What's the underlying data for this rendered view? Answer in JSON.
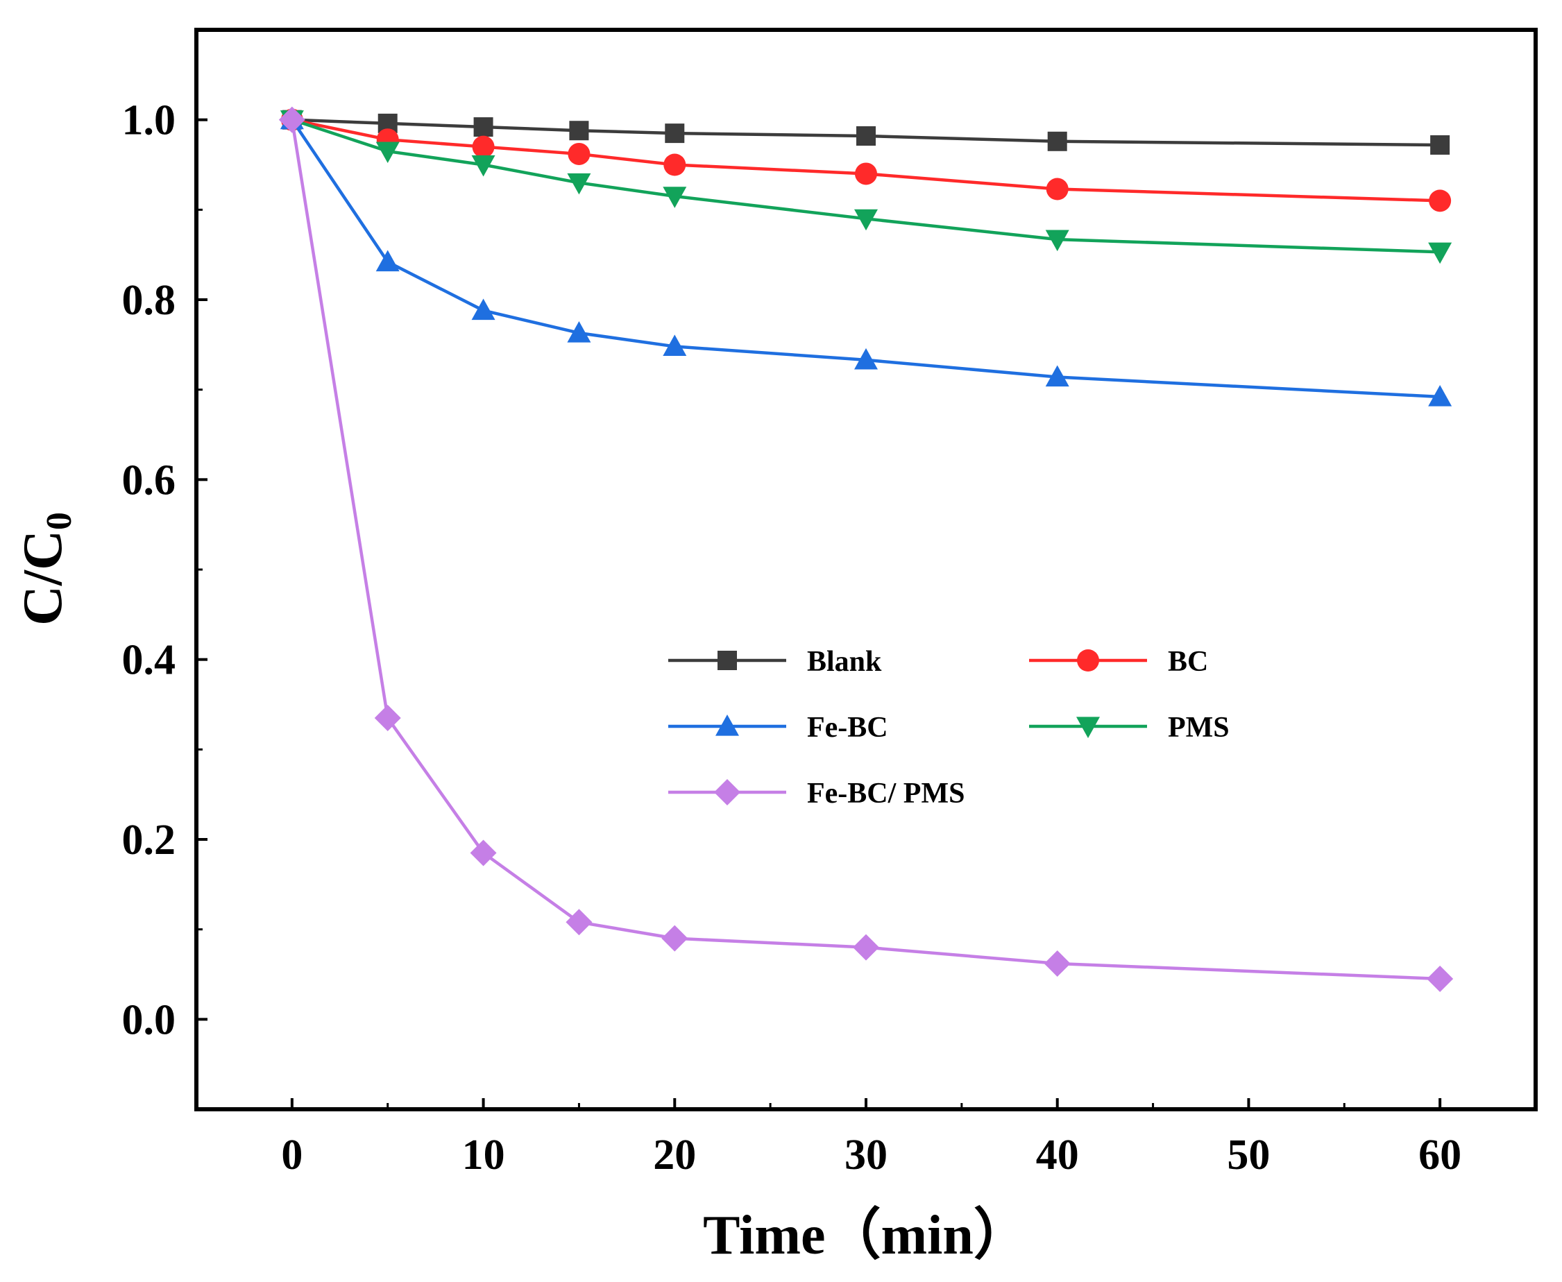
{
  "chart_data": {
    "type": "line",
    "title": "",
    "xlabel": "Time（min）",
    "ylabel_main": "C/C",
    "ylabel_sub": "0",
    "xlim": [
      -5,
      65
    ],
    "ylim": [
      -0.1,
      1.1
    ],
    "xticks": [
      0,
      10,
      20,
      30,
      40,
      50,
      60
    ],
    "xtick_labels": [
      "0",
      "10",
      "20",
      "30",
      "40",
      "50",
      "60"
    ],
    "yticks": [
      0.0,
      0.2,
      0.4,
      0.6,
      0.8,
      1.0
    ],
    "ytick_labels": [
      "0.0",
      "0.2",
      "0.4",
      "0.6",
      "0.8",
      "1.0"
    ],
    "x": [
      0,
      5,
      10,
      15,
      20,
      30,
      40,
      60
    ],
    "legend_position": "center-right",
    "series": [
      {
        "name": "Blank",
        "color": "#3c3c3c",
        "marker": "square",
        "values": [
          1.0,
          0.996,
          0.992,
          0.988,
          0.985,
          0.982,
          0.976,
          0.972
        ]
      },
      {
        "name": "BC",
        "color": "#ff2a2a",
        "marker": "circle",
        "values": [
          1.0,
          0.978,
          0.97,
          0.962,
          0.95,
          0.94,
          0.923,
          0.91
        ]
      },
      {
        "name": "Fe-BC",
        "color": "#1f6fe0",
        "marker": "triangle-up",
        "values": [
          1.0,
          0.842,
          0.788,
          0.763,
          0.748,
          0.733,
          0.714,
          0.692
        ]
      },
      {
        "name": "PMS",
        "color": "#12a35a",
        "marker": "triangle-down",
        "values": [
          1.0,
          0.965,
          0.95,
          0.93,
          0.915,
          0.89,
          0.867,
          0.853
        ]
      },
      {
        "name": "Fe-BC/ PMS",
        "color": "#c57fe6",
        "marker": "diamond",
        "values": [
          1.0,
          0.335,
          0.185,
          0.108,
          0.09,
          0.08,
          0.062,
          0.045
        ]
      }
    ]
  }
}
